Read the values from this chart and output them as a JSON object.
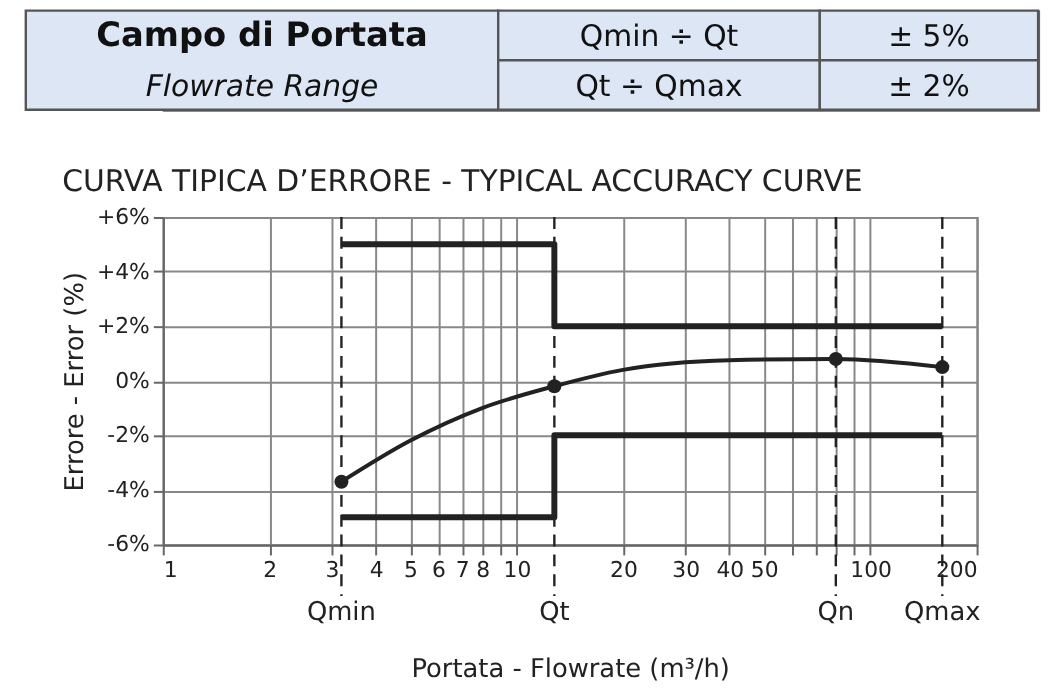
{
  "chart_data": {
    "type": "line",
    "title": "CURVA TIPICA D’ERRORE - TYPICAL ACCURACY CURVE",
    "xlabel": "Portata - Flowrate (m³/h)",
    "ylabel": "Errore - Error (%)",
    "annotations": [
      "Campo di Portata",
      "Flowrate Range",
      "Qmin ÷ Qt",
      "Qt ÷ Qmax",
      "± 5%",
      "± 2%"
    ],
    "log": "x",
    "grid": true,
    "xlim": [
      1,
      200
    ],
    "xticks": [
      1,
      2,
      3,
      4,
      5,
      6,
      7,
      8,
      {
        "value": 9,
        "label": null
      },
      10,
      20,
      30,
      40,
      50,
      {
        "value": 60,
        "label": null
      },
      {
        "value": 70,
        "label": null
      },
      {
        "value": 80,
        "label": null
      },
      {
        "value": 90,
        "label": null
      },
      100,
      200
    ],
    "ylim": [
      -6,
      6
    ],
    "yticks": [
      {
        "value": -6,
        "label": "-6%"
      },
      {
        "value": -4,
        "label": "-4%"
      },
      {
        "value": -2,
        "label": "-2%"
      },
      {
        "value": 0,
        "label": "0%"
      },
      {
        "value": 2,
        "label": "+2%"
      },
      {
        "value": 4,
        "label": "+4%"
      },
      {
        "value": 6,
        "label": "+6%"
      }
    ],
    "series": [
      {
        "type": "line",
        "marker": "none",
        "color": "#222222",
        "x": [
          3.2,
          12.8,
          12.8,
          160
        ],
        "values": [
          5,
          5,
          2,
          2
        ]
      },
      {
        "type": "line",
        "marker": "none",
        "color": "#222222",
        "x": [
          3.2,
          12.8,
          12.8,
          160
        ],
        "values": [
          -5,
          -5,
          -2,
          -2
        ]
      },
      {
        "type": "line",
        "marker": "none",
        "color": "#222222",
        "x": [
          3.2,
          5,
          8,
          12.8,
          20,
          40,
          80,
          160
        ],
        "values": [
          -3.7,
          -2.2,
          -1.0,
          -0.2,
          0.4,
          0.75,
          0.8,
          0.5
        ]
      },
      {
        "type": "scatter",
        "marker": "circle",
        "color": "#222222",
        "x": [
          3.2,
          12.8,
          80,
          160
        ],
        "values": [
          -3.7,
          -0.2,
          0.8,
          0.5
        ]
      }
    ],
    "ref_lines": [
      {
        "axis": "x",
        "value": 3.2,
        "label": "Qmin",
        "line_style": "dashed"
      },
      {
        "axis": "x",
        "value": 12.8,
        "label": "Qt",
        "line_style": "dashed"
      },
      {
        "axis": "x",
        "value": 80,
        "label": "Qn",
        "line_style": "dashed"
      },
      {
        "axis": "x",
        "value": 160,
        "label": "Qmax",
        "line_style": "dashed"
      }
    ]
  }
}
